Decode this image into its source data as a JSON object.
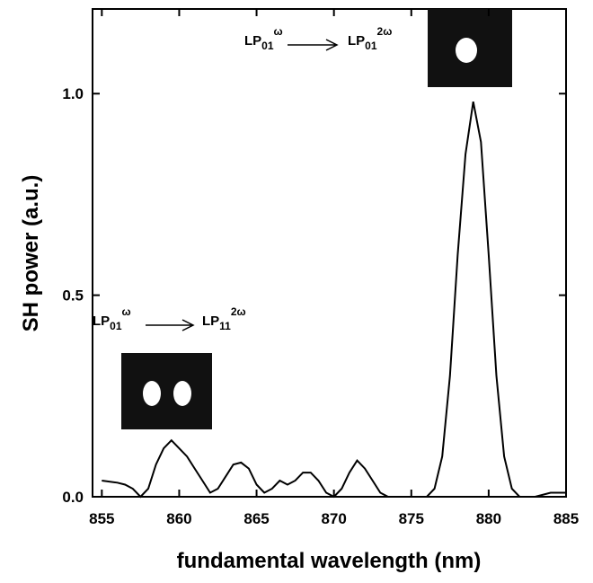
{
  "chart_data": {
    "type": "line",
    "x_label": "fundamental wavelength (nm)",
    "y_label": "SH power (a.u.)",
    "x": [
      855,
      856,
      856.5,
      857,
      857.5,
      858,
      858.5,
      859,
      859.5,
      860,
      860.5,
      861,
      861.5,
      862,
      862.5,
      863,
      863.5,
      864,
      864.5,
      865,
      865.5,
      866,
      866.5,
      867,
      867.5,
      868,
      868.5,
      869,
      869.5,
      870,
      870.5,
      871,
      871.5,
      872,
      872.5,
      873,
      873.5,
      874,
      875,
      876,
      876.5,
      877,
      877.5,
      878,
      878.5,
      879,
      879.5,
      880,
      880.5,
      881,
      881.5,
      882,
      883,
      884,
      885
    ],
    "values": [
      0.04,
      0.035,
      0.03,
      0.02,
      0.0,
      0.02,
      0.08,
      0.12,
      0.14,
      0.12,
      0.1,
      0.07,
      0.04,
      0.01,
      0.02,
      0.05,
      0.08,
      0.085,
      0.07,
      0.03,
      0.01,
      0.02,
      0.04,
      0.03,
      0.04,
      0.06,
      0.06,
      0.04,
      0.01,
      0.0,
      0.02,
      0.06,
      0.09,
      0.07,
      0.04,
      0.01,
      0.0,
      0.0,
      0.0,
      0.0,
      0.02,
      0.1,
      0.3,
      0.6,
      0.85,
      0.98,
      0.88,
      0.6,
      0.3,
      0.1,
      0.02,
      0.0,
      0.0,
      0.01,
      0.01
    ],
    "color": "#000000",
    "xlim": [
      854.4,
      885
    ],
    "ylim": [
      0,
      1.21
    ],
    "xticks": [
      855,
      860,
      865,
      870,
      875,
      880,
      885
    ],
    "yticks": [
      {
        "value": 0,
        "label": "0.0"
      },
      0.5,
      {
        "value": 1,
        "label": "1.0"
      }
    ],
    "annotations": [
      {
        "from": {
          "text": "LP",
          "sub": "01",
          "sup": "ω"
        },
        "to": {
          "text": "LP",
          "sub": "01",
          "sup": "2ω"
        }
      },
      {
        "from": {
          "text": "LP",
          "sub": "01",
          "sup": "ω"
        },
        "to": {
          "text": "LP",
          "sub": "11",
          "sup": "2ω"
        }
      }
    ]
  }
}
